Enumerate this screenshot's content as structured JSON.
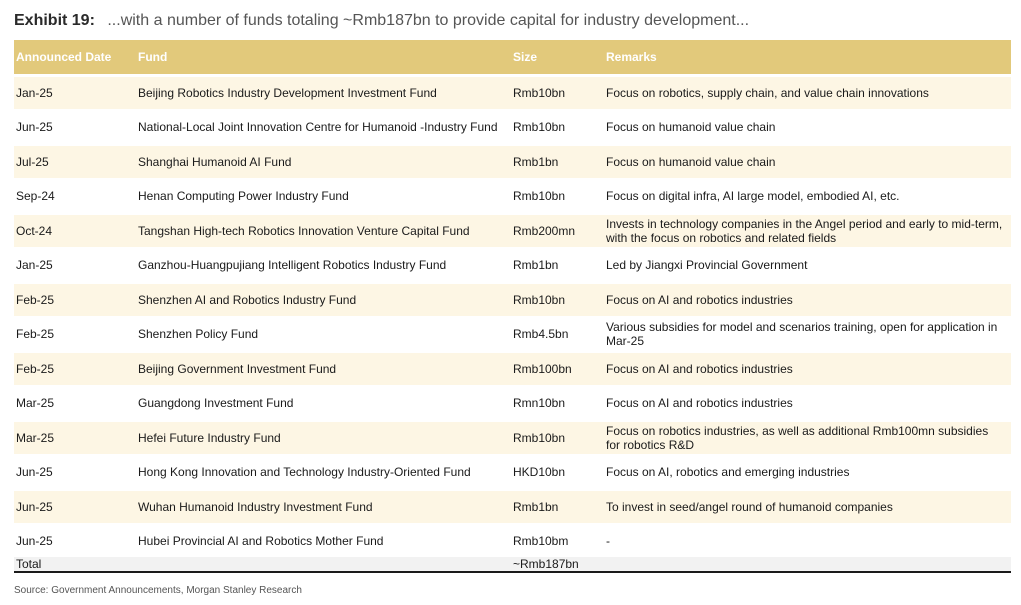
{
  "title": {
    "label": "Exhibit 19:",
    "text": "...with a number of funds totaling ~Rmb187bn to provide capital for industry development..."
  },
  "table": {
    "headers": {
      "date": "Announced Date",
      "fund": "Fund",
      "size": "Size",
      "remarks": "Remarks"
    },
    "rows": [
      {
        "date": "Jan-25",
        "fund": "Beijing Robotics Industry Development Investment Fund",
        "size": "Rmb10bn",
        "remarks": "Focus on robotics, supply chain, and value chain innovations"
      },
      {
        "date": "Jun-25",
        "fund": "National-Local Joint Innovation Centre for Humanoid -Industry Fund",
        "size": "Rmb10bn",
        "remarks": "Focus on humanoid value chain"
      },
      {
        "date": "Jul-25",
        "fund": "Shanghai Humanoid AI Fund",
        "size": "Rmb1bn",
        "remarks": "Focus on humanoid value chain"
      },
      {
        "date": "Sep-24",
        "fund": "Henan Computing Power Industry Fund",
        "size": "Rmb10bn",
        "remarks": "Focus on digital infra, AI large model, embodied AI, etc."
      },
      {
        "date": "Oct-24",
        "fund": "Tangshan High-tech Robotics Innovation Venture Capital Fund",
        "size": "Rmb200mn",
        "remarks": "Invests in technology companies in the Angel period and early to mid-term, with the focus on robotics and related fields"
      },
      {
        "date": "Jan-25",
        "fund": "Ganzhou-Huangpujiang Intelligent Robotics Industry Fund",
        "size": "Rmb1bn",
        "remarks": "Led by Jiangxi Provincial Government"
      },
      {
        "date": "Feb-25",
        "fund": "Shenzhen AI and Robotics Industry Fund",
        "size": "Rmb10bn",
        "remarks": "Focus on AI and robotics industries"
      },
      {
        "date": "Feb-25",
        "fund": "Shenzhen Policy Fund",
        "size": "Rmb4.5bn",
        "remarks": "Various subsidies for model and scenarios training, open for application in Mar-25"
      },
      {
        "date": "Feb-25",
        "fund": "Beijing Government Investment Fund",
        "size": "Rmb100bn",
        "remarks": "Focus on AI and robotics industries"
      },
      {
        "date": "Mar-25",
        "fund": "Guangdong Investment Fund",
        "size": "Rmn10bn",
        "remarks": "Focus on AI and robotics industries"
      },
      {
        "date": "Mar-25",
        "fund": "Hefei Future Industry Fund",
        "size": "Rmb10bn",
        "remarks": "Focus on robotics industries, as well as additional Rmb100mn subsidies for robotics R&D"
      },
      {
        "date": "Jun-25",
        "fund": "Hong Kong Innovation and Technology Industry-Oriented Fund",
        "size": "HKD10bn",
        "remarks": "Focus on AI, robotics and emerging industries"
      },
      {
        "date": "Jun-25",
        "fund": "Wuhan Humanoid Industry Investment Fund",
        "size": "Rmb1bn",
        "remarks": "To invest in seed/angel round of humanoid companies"
      },
      {
        "date": "Jun-25",
        "fund": "Hubei Provincial AI and Robotics Mother Fund",
        "size": "Rmb10bm",
        "remarks": "-"
      }
    ],
    "total": {
      "label": "Total",
      "size": "~Rmb187bn"
    }
  },
  "source": "Source: Government Announcements, Morgan Stanley Research",
  "colors": {
    "header_bg": "#e2c97b",
    "row_alt_bg": "#fdf6e4"
  }
}
